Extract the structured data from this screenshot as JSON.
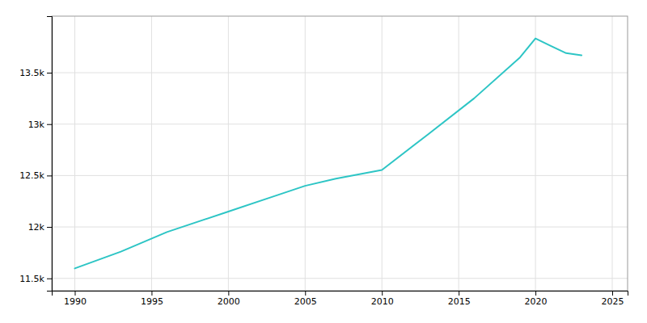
{
  "chart_data": {
    "type": "line",
    "x": [
      1990,
      1993,
      1996,
      2000,
      2003,
      2005,
      2007,
      2010,
      2013,
      2016,
      2019,
      2020,
      2021,
      2022,
      2023
    ],
    "values": [
      11597,
      11760,
      11950,
      12150,
      12300,
      12400,
      12470,
      12554,
      12900,
      13250,
      13650,
      13833,
      13760,
      13690,
      13670
    ],
    "color": "#2DC5C5",
    "xlim": [
      1988.5,
      2026
    ],
    "ylim": [
      11380,
      14050
    ],
    "xticks": [
      1990,
      1995,
      2000,
      2005,
      2010,
      2015,
      2020,
      2025
    ],
    "yticks": [
      {
        "value": 11500,
        "label": "11.5k"
      },
      {
        "value": 12000,
        "label": "12k"
      },
      {
        "value": 12500,
        "label": "12.5k"
      },
      {
        "value": 13000,
        "label": "13k"
      },
      {
        "value": 13500,
        "label": "13.5k"
      }
    ],
    "grid": true
  }
}
